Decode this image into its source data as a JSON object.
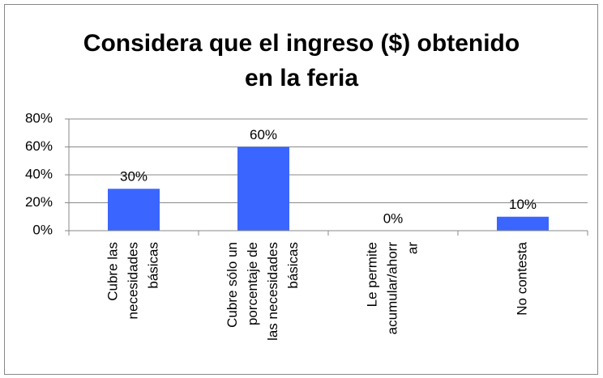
{
  "chart_data": {
    "type": "bar",
    "title": [
      "Considera que el ingreso ($) obtenido",
      "en la feria"
    ],
    "categories": [
      [
        "Cubre las",
        "necesidades",
        "básicas"
      ],
      [
        "Cubre sólo un",
        "porcentaje de",
        "las necesidades",
        "básicas"
      ],
      [
        "Le permite",
        "acumular/ahorr",
        "ar"
      ],
      [
        "No contesta"
      ]
    ],
    "values": [
      30,
      60,
      0,
      10
    ],
    "value_labels": [
      "30%",
      "60%",
      "0%",
      "10%"
    ],
    "color": "#3a66ff",
    "ylim": [
      0,
      80
    ],
    "yticks": [
      {
        "value": 0,
        "label": "0%"
      },
      {
        "value": 20,
        "label": "20%"
      },
      {
        "value": 40,
        "label": "40%"
      },
      {
        "value": 60,
        "label": "60%"
      },
      {
        "value": 80,
        "label": "80%"
      }
    ],
    "grid": true
  }
}
